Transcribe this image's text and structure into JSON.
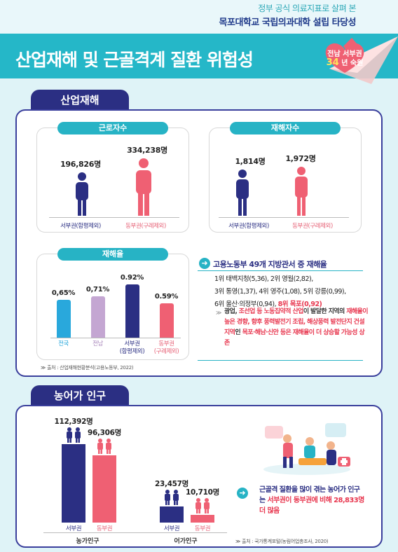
{
  "header": {
    "subtitle": "정부 공식 의료지표로 살펴 본",
    "title": "목포대학교 국립의과대학 설립 타당성"
  },
  "hero": {
    "title": "산업재해 및 근골격계 질환 위험성",
    "badge_line1": "전남 서부권",
    "badge_num": "34",
    "badge_unit": "년 숙원"
  },
  "industrial": {
    "tab": "산업재해",
    "workers": {
      "title": "근로자수",
      "west_value": "196,826명",
      "east_value": "334,238명",
      "west_label": "서부권(함평제외)",
      "east_label": "동부권(구례제외)",
      "west_count": 196826,
      "east_count": 334238
    },
    "victims": {
      "title": "재해자수",
      "west_value": "1,814명",
      "east_value": "1,972명",
      "west_label": "서부권(함평제외)",
      "east_label": "동부권(구례제외)",
      "west_count": 1814,
      "east_count": 1972
    },
    "rate": {
      "title": "재해율",
      "bars": [
        {
          "label": "전국",
          "value_text": "0,65%",
          "value": 0.65,
          "color": "#29a8dc"
        },
        {
          "label": "전남",
          "value_text": "0,71%",
          "value": 0.71,
          "color": "#c4a6d2"
        },
        {
          "label": "서부권\n(함평제외)",
          "value_text": "0.92%",
          "value": 0.92,
          "color": "#2b2f83"
        },
        {
          "label": "동부권\n(구례제외)",
          "value_text": "0.59%",
          "value": 0.59,
          "color": "#ef6073"
        }
      ]
    },
    "ranking": {
      "headline": "고용노동부 49개 지방관서 중 재해율",
      "line1": "1위 태백지청(5,36), 2위 영월(2,82),",
      "line2": "3위 통영(1,37), 4위 영주(1,08), 5위 강릉(0,99),",
      "line3_pre": "6위 울산·의정부(0,94), ",
      "line3_red": "8위 목포(0,92)"
    },
    "note": {
      "p1": "광업, ",
      "p2": "조선업 등 노동집약적 산업",
      "p3": "이 발달한 지역의 ",
      "p4": "재해율이 높은 경향, 향후 풍력발전기 조립, 해상풍력 발전단지 건설 지역",
      "p5": "인 ",
      "p6": "목포·해남·신안 등은 재해율이 더 상승할 가능성 상존"
    },
    "source": "출처 : 산업재해현황분석(고용노동부, 2022)"
  },
  "population": {
    "tab": "농어가 인구",
    "farm": {
      "west_value": "112,392명",
      "east_value": "96,306명",
      "west_count": 112392,
      "east_count": 96306,
      "west_label": "서부권",
      "east_label": "동부권",
      "group_label": "농가인구"
    },
    "fish": {
      "west_value": "23,457명",
      "east_value": "10,710명",
      "west_count": 23457,
      "east_count": 10710,
      "west_label": "서부권",
      "east_label": "동부권",
      "group_label": "어가인구"
    },
    "note": {
      "p1": "근골격 질환을 많이 겪는 농어가 인구는 ",
      "p2": "서부권이 동부권에 비해 28,833명 더 많음"
    },
    "source": "출처 : 국가통계포털(농림어업총조사, 2020)"
  },
  "colors": {
    "west": "#2b2f83",
    "east": "#ef6073",
    "accent": "#27b3c5"
  },
  "icons": [
    "person-west-icon",
    "person-east-icon",
    "family-west-icon",
    "family-east-icon",
    "arrow-right-icon",
    "paper-plane-icon",
    "injured-workers-illustration"
  ]
}
